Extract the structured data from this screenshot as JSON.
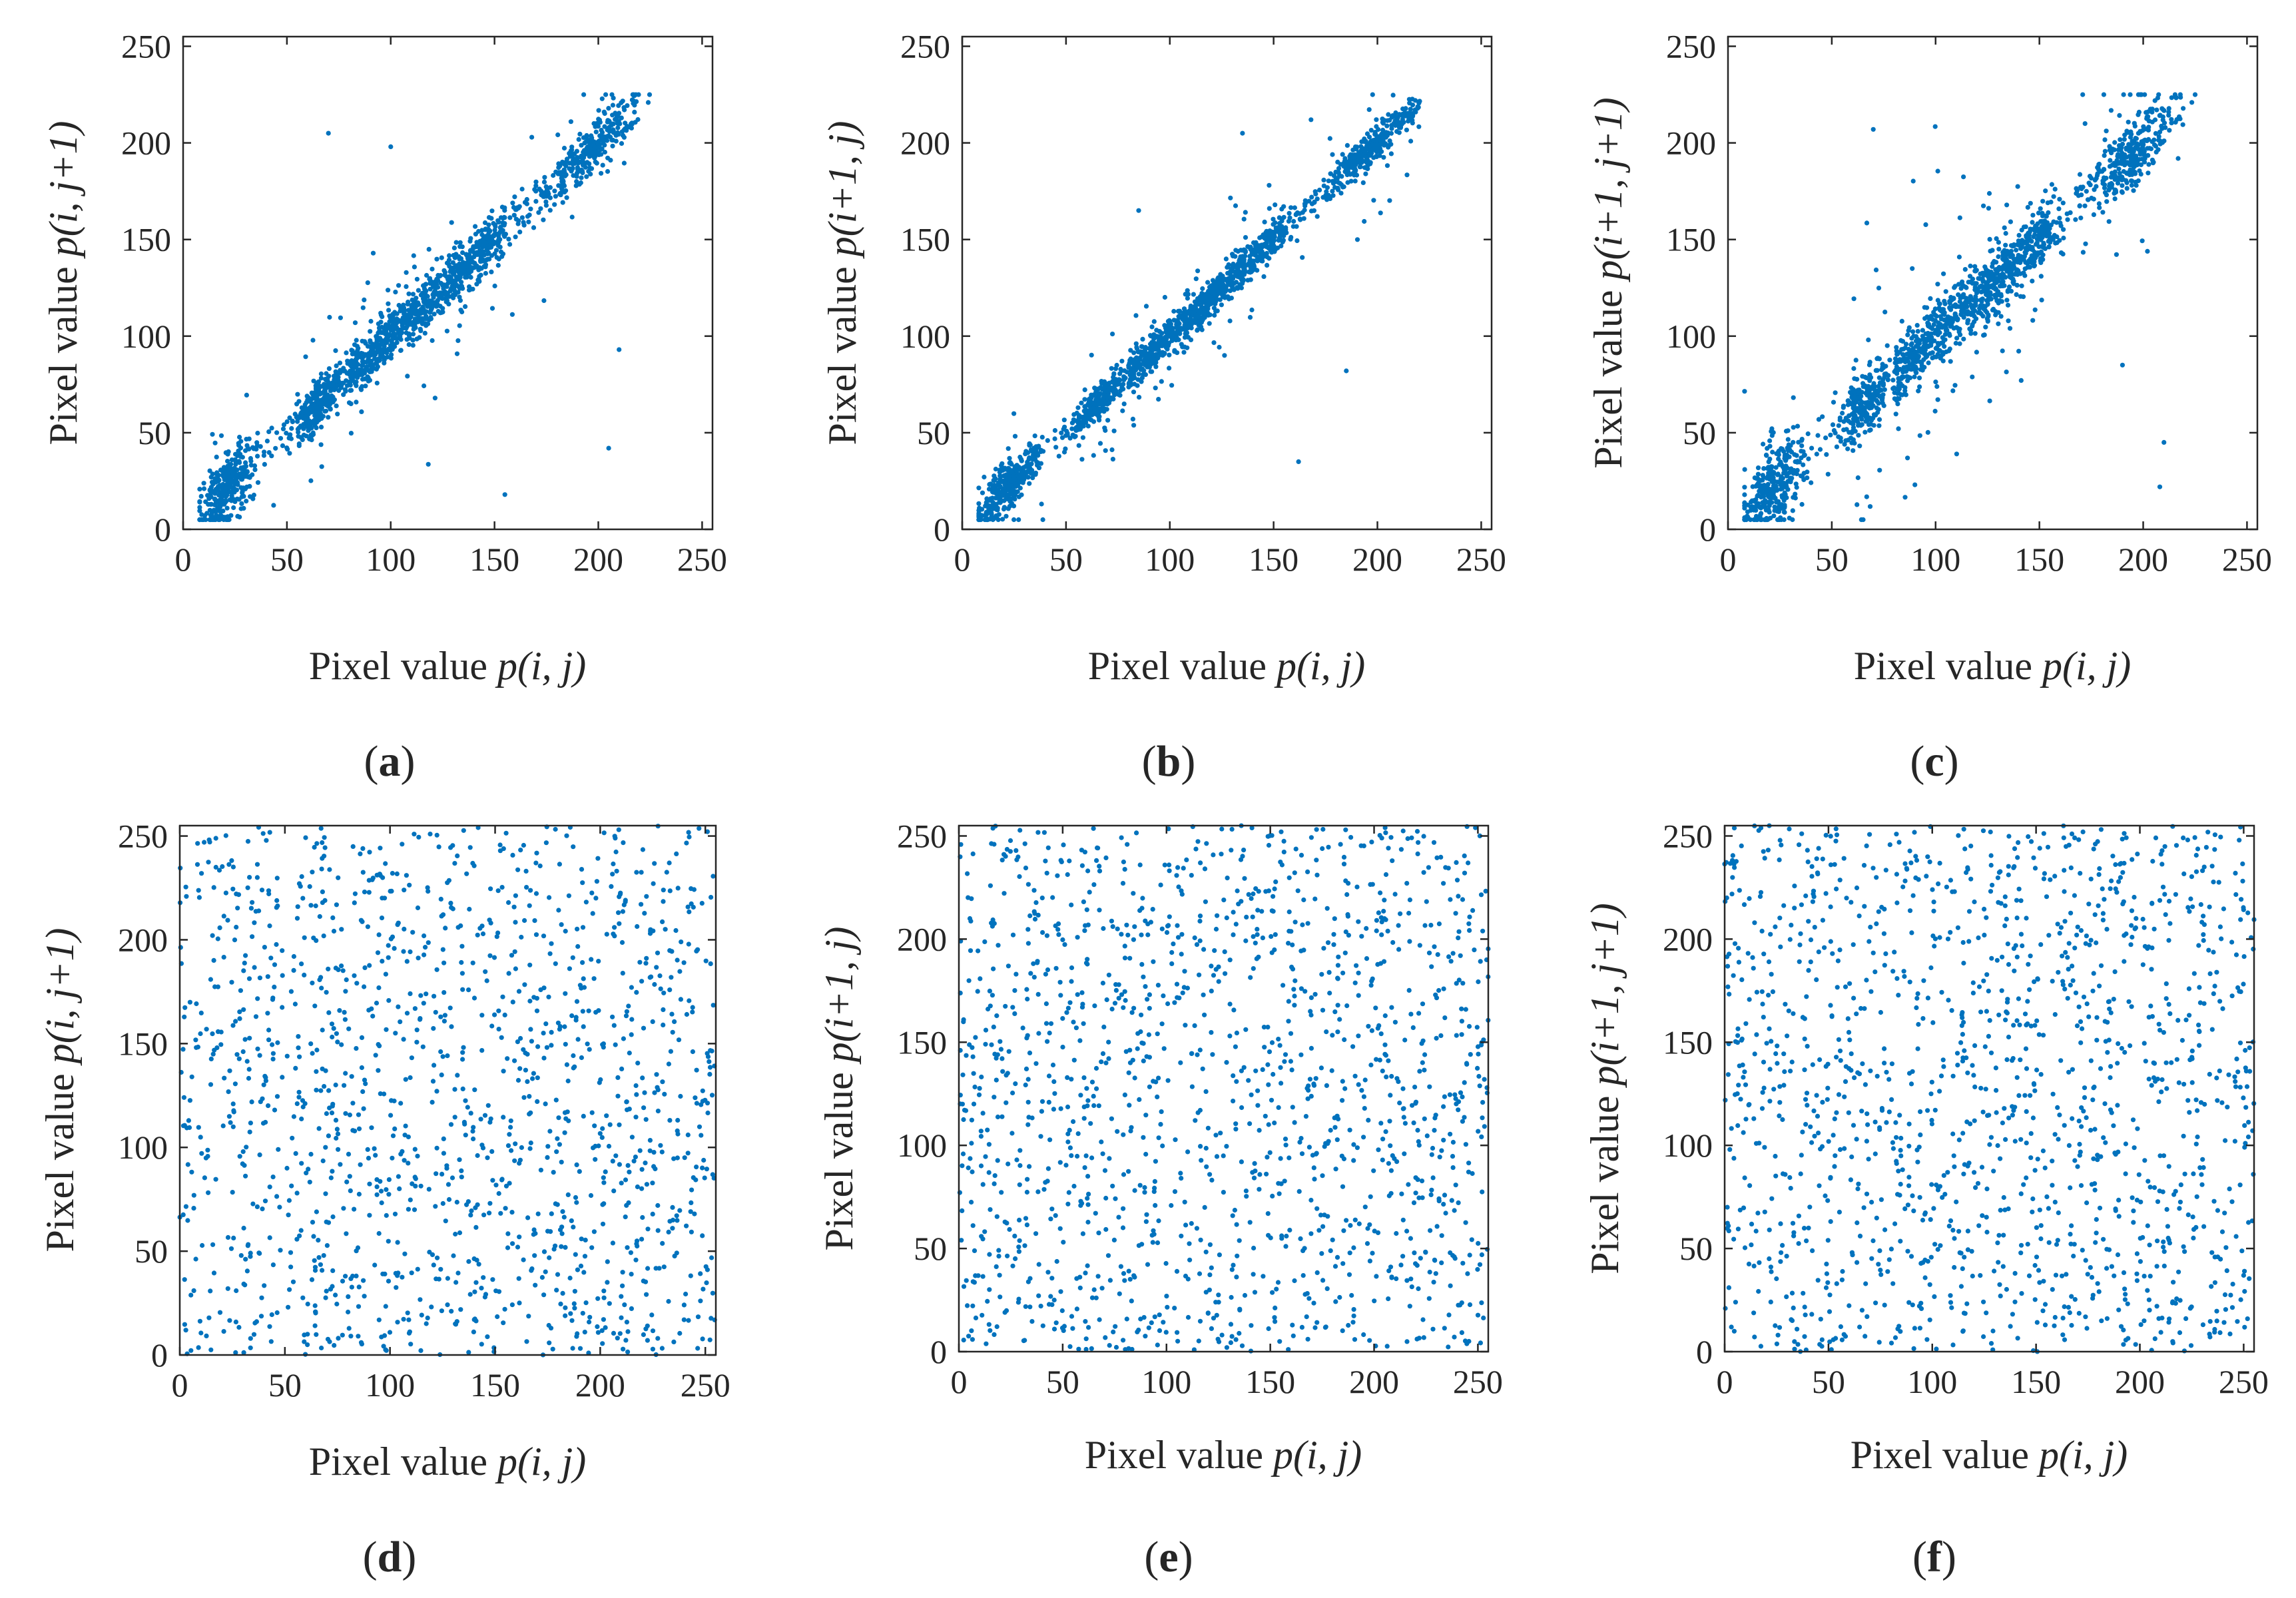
{
  "figure": {
    "background": "#ffffff",
    "point_color": "#0072BD",
    "axis_color": "#262626"
  },
  "chart_data": [
    {
      "id": "a",
      "type": "scatter",
      "panel_label": "a",
      "xlabel_prefix": "Pixel value ",
      "xlabel_var": "p(i, j)",
      "ylabel_prefix": "Pixel value ",
      "ylabel_var": "p(i, j+1)",
      "xlim": [
        0,
        255
      ],
      "ylim": [
        0,
        255
      ],
      "xticks": [
        0,
        50,
        100,
        150,
        200,
        250
      ],
      "yticks": [
        0,
        50,
        100,
        150,
        200,
        250
      ],
      "distribution": "correlated",
      "n_points": 1800,
      "seed": 11,
      "outliers": [
        [
          70,
          205
        ],
        [
          100,
          198
        ],
        [
          210,
          93
        ],
        [
          205,
          42
        ],
        [
          155,
          18
        ]
      ]
    },
    {
      "id": "b",
      "type": "scatter",
      "panel_label": "b",
      "xlabel_prefix": "Pixel value ",
      "xlabel_var": "p(i, j)",
      "ylabel_prefix": "Pixel value ",
      "ylabel_var": "p(i+1, j)",
      "xlim": [
        0,
        255
      ],
      "ylim": [
        0,
        255
      ],
      "xticks": [
        0,
        50,
        100,
        150,
        200,
        250
      ],
      "yticks": [
        0,
        50,
        100,
        150,
        200,
        250
      ],
      "distribution": "correlated-tight",
      "n_points": 1800,
      "seed": 23,
      "outliers": [
        [
          135,
          205
        ],
        [
          185,
          82
        ],
        [
          162,
          35
        ],
        [
          168,
          212
        ],
        [
          85,
          165
        ]
      ]
    },
    {
      "id": "c",
      "type": "scatter",
      "panel_label": "c",
      "xlabel_prefix": "Pixel value ",
      "xlabel_var": "p(i, j)",
      "ylabel_prefix": "Pixel value ",
      "ylabel_var": "p(i+1, j+1)",
      "xlim": [
        0,
        255
      ],
      "ylim": [
        0,
        255
      ],
      "xticks": [
        0,
        50,
        100,
        150,
        200,
        250
      ],
      "yticks": [
        0,
        50,
        100,
        150,
        200,
        250
      ],
      "distribution": "correlated-wide",
      "n_points": 1800,
      "seed": 37,
      "outliers": [
        [
          70,
          207
        ],
        [
          172,
          210
        ],
        [
          210,
          45
        ],
        [
          208,
          22
        ],
        [
          190,
          85
        ]
      ]
    },
    {
      "id": "d",
      "type": "scatter",
      "panel_label": "d",
      "xlabel_prefix": "Pixel value ",
      "xlabel_var": "p(i, j)",
      "ylabel_prefix": "Pixel value ",
      "ylabel_var": "p(i, j+1)",
      "xlim": [
        0,
        255
      ],
      "ylim": [
        0,
        255
      ],
      "xticks": [
        0,
        50,
        100,
        150,
        200,
        250
      ],
      "yticks": [
        0,
        50,
        100,
        150,
        200,
        250
      ],
      "distribution": "uniform",
      "n_points": 1400,
      "seed": 41,
      "outliers": []
    },
    {
      "id": "e",
      "type": "scatter",
      "panel_label": "e",
      "xlabel_prefix": "Pixel value ",
      "xlabel_var": "p(i, j)",
      "ylabel_prefix": "Pixel value ",
      "ylabel_var": "p(i+1, j)",
      "xlim": [
        0,
        255
      ],
      "ylim": [
        0,
        255
      ],
      "xticks": [
        0,
        50,
        100,
        150,
        200,
        250
      ],
      "yticks": [
        0,
        50,
        100,
        150,
        200,
        250
      ],
      "distribution": "uniform",
      "n_points": 1400,
      "seed": 53,
      "outliers": []
    },
    {
      "id": "f",
      "type": "scatter",
      "panel_label": "f",
      "xlabel_prefix": "Pixel value ",
      "xlabel_var": "p(i, j)",
      "ylabel_prefix": "Pixel value ",
      "ylabel_var": "p(i+1, j+1)",
      "xlim": [
        0,
        255
      ],
      "ylim": [
        0,
        255
      ],
      "xticks": [
        0,
        50,
        100,
        150,
        200,
        250
      ],
      "yticks": [
        0,
        50,
        100,
        150,
        200,
        250
      ],
      "distribution": "uniform",
      "n_points": 1400,
      "seed": 67,
      "outliers": []
    }
  ]
}
